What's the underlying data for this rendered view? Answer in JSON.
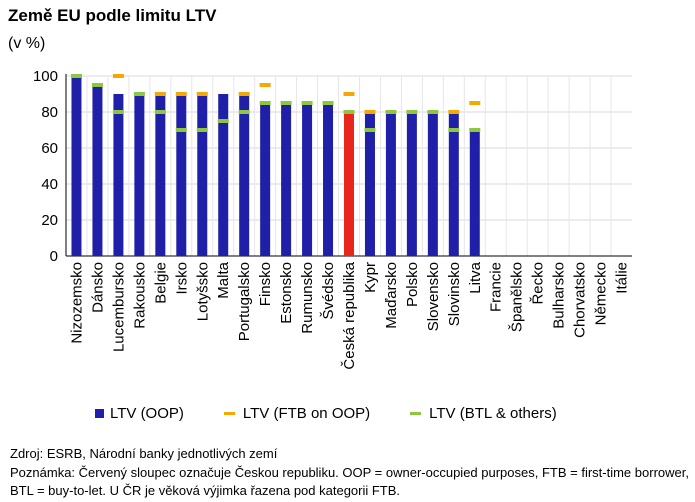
{
  "chart_data": {
    "type": "bar",
    "title": "Země EU podle limitu LTV",
    "unit": "(v %)",
    "ylim": [
      0,
      100
    ],
    "yticks": [
      0,
      20,
      40,
      60,
      80,
      100
    ],
    "grid": true,
    "legend_position": "bottom",
    "categories": [
      "Nizozemsko",
      "Dánsko",
      "Lucembursko",
      "Rakousko",
      "Belgie",
      "Irsko",
      "Lotyšsko",
      "Malta",
      "Portugalsko",
      "Finsko",
      "Estonsko",
      "Rumunsko",
      "Švédsko",
      "Česká republika",
      "Kypr",
      "Maďarsko",
      "Polsko",
      "Slovensko",
      "Slovinsko",
      "Litva",
      "Francie",
      "Španělsko",
      "Řecko",
      "Bulharsko",
      "Chorvatsko",
      "Německo",
      "Itálie"
    ],
    "highlight_category": "Česká republika",
    "series": [
      {
        "name": "LTV (OOP)",
        "kind": "bar",
        "color": "#1f1fa8",
        "values": [
          100,
          95,
          90,
          90,
          90,
          90,
          90,
          90,
          90,
          85,
          85,
          85,
          85,
          80,
          80,
          80,
          80,
          80,
          80,
          70,
          null,
          null,
          null,
          null,
          null,
          null,
          null
        ]
      },
      {
        "name": "LTV (FTB on OOP)",
        "kind": "marker",
        "color": "#f5a800",
        "values": [
          null,
          null,
          100,
          null,
          90,
          90,
          90,
          null,
          90,
          95,
          null,
          null,
          null,
          90,
          80,
          null,
          null,
          null,
          80,
          85,
          null,
          null,
          null,
          null,
          null,
          null,
          null
        ]
      },
      {
        "name": "LTV (BTL & others)",
        "kind": "marker",
        "color": "#8dc63f",
        "values": [
          100,
          95,
          80,
          90,
          80,
          70,
          70,
          75,
          80,
          85,
          85,
          85,
          85,
          80,
          70,
          80,
          80,
          80,
          70,
          70,
          null,
          null,
          null,
          null,
          null,
          null,
          null
        ]
      }
    ],
    "highlight_color": "#e8261c"
  },
  "footer": {
    "source": "Zdroj: ESRB, Národní banky jednotlivých zemí",
    "note": "Poznámka: Červený sloupec označuje Českou republiku. OOP = owner-occupied purposes, FTB = first-time borrower, BTL = buy-to-let. U ČR je věková výjimka řazena pod kategorii FTB."
  }
}
